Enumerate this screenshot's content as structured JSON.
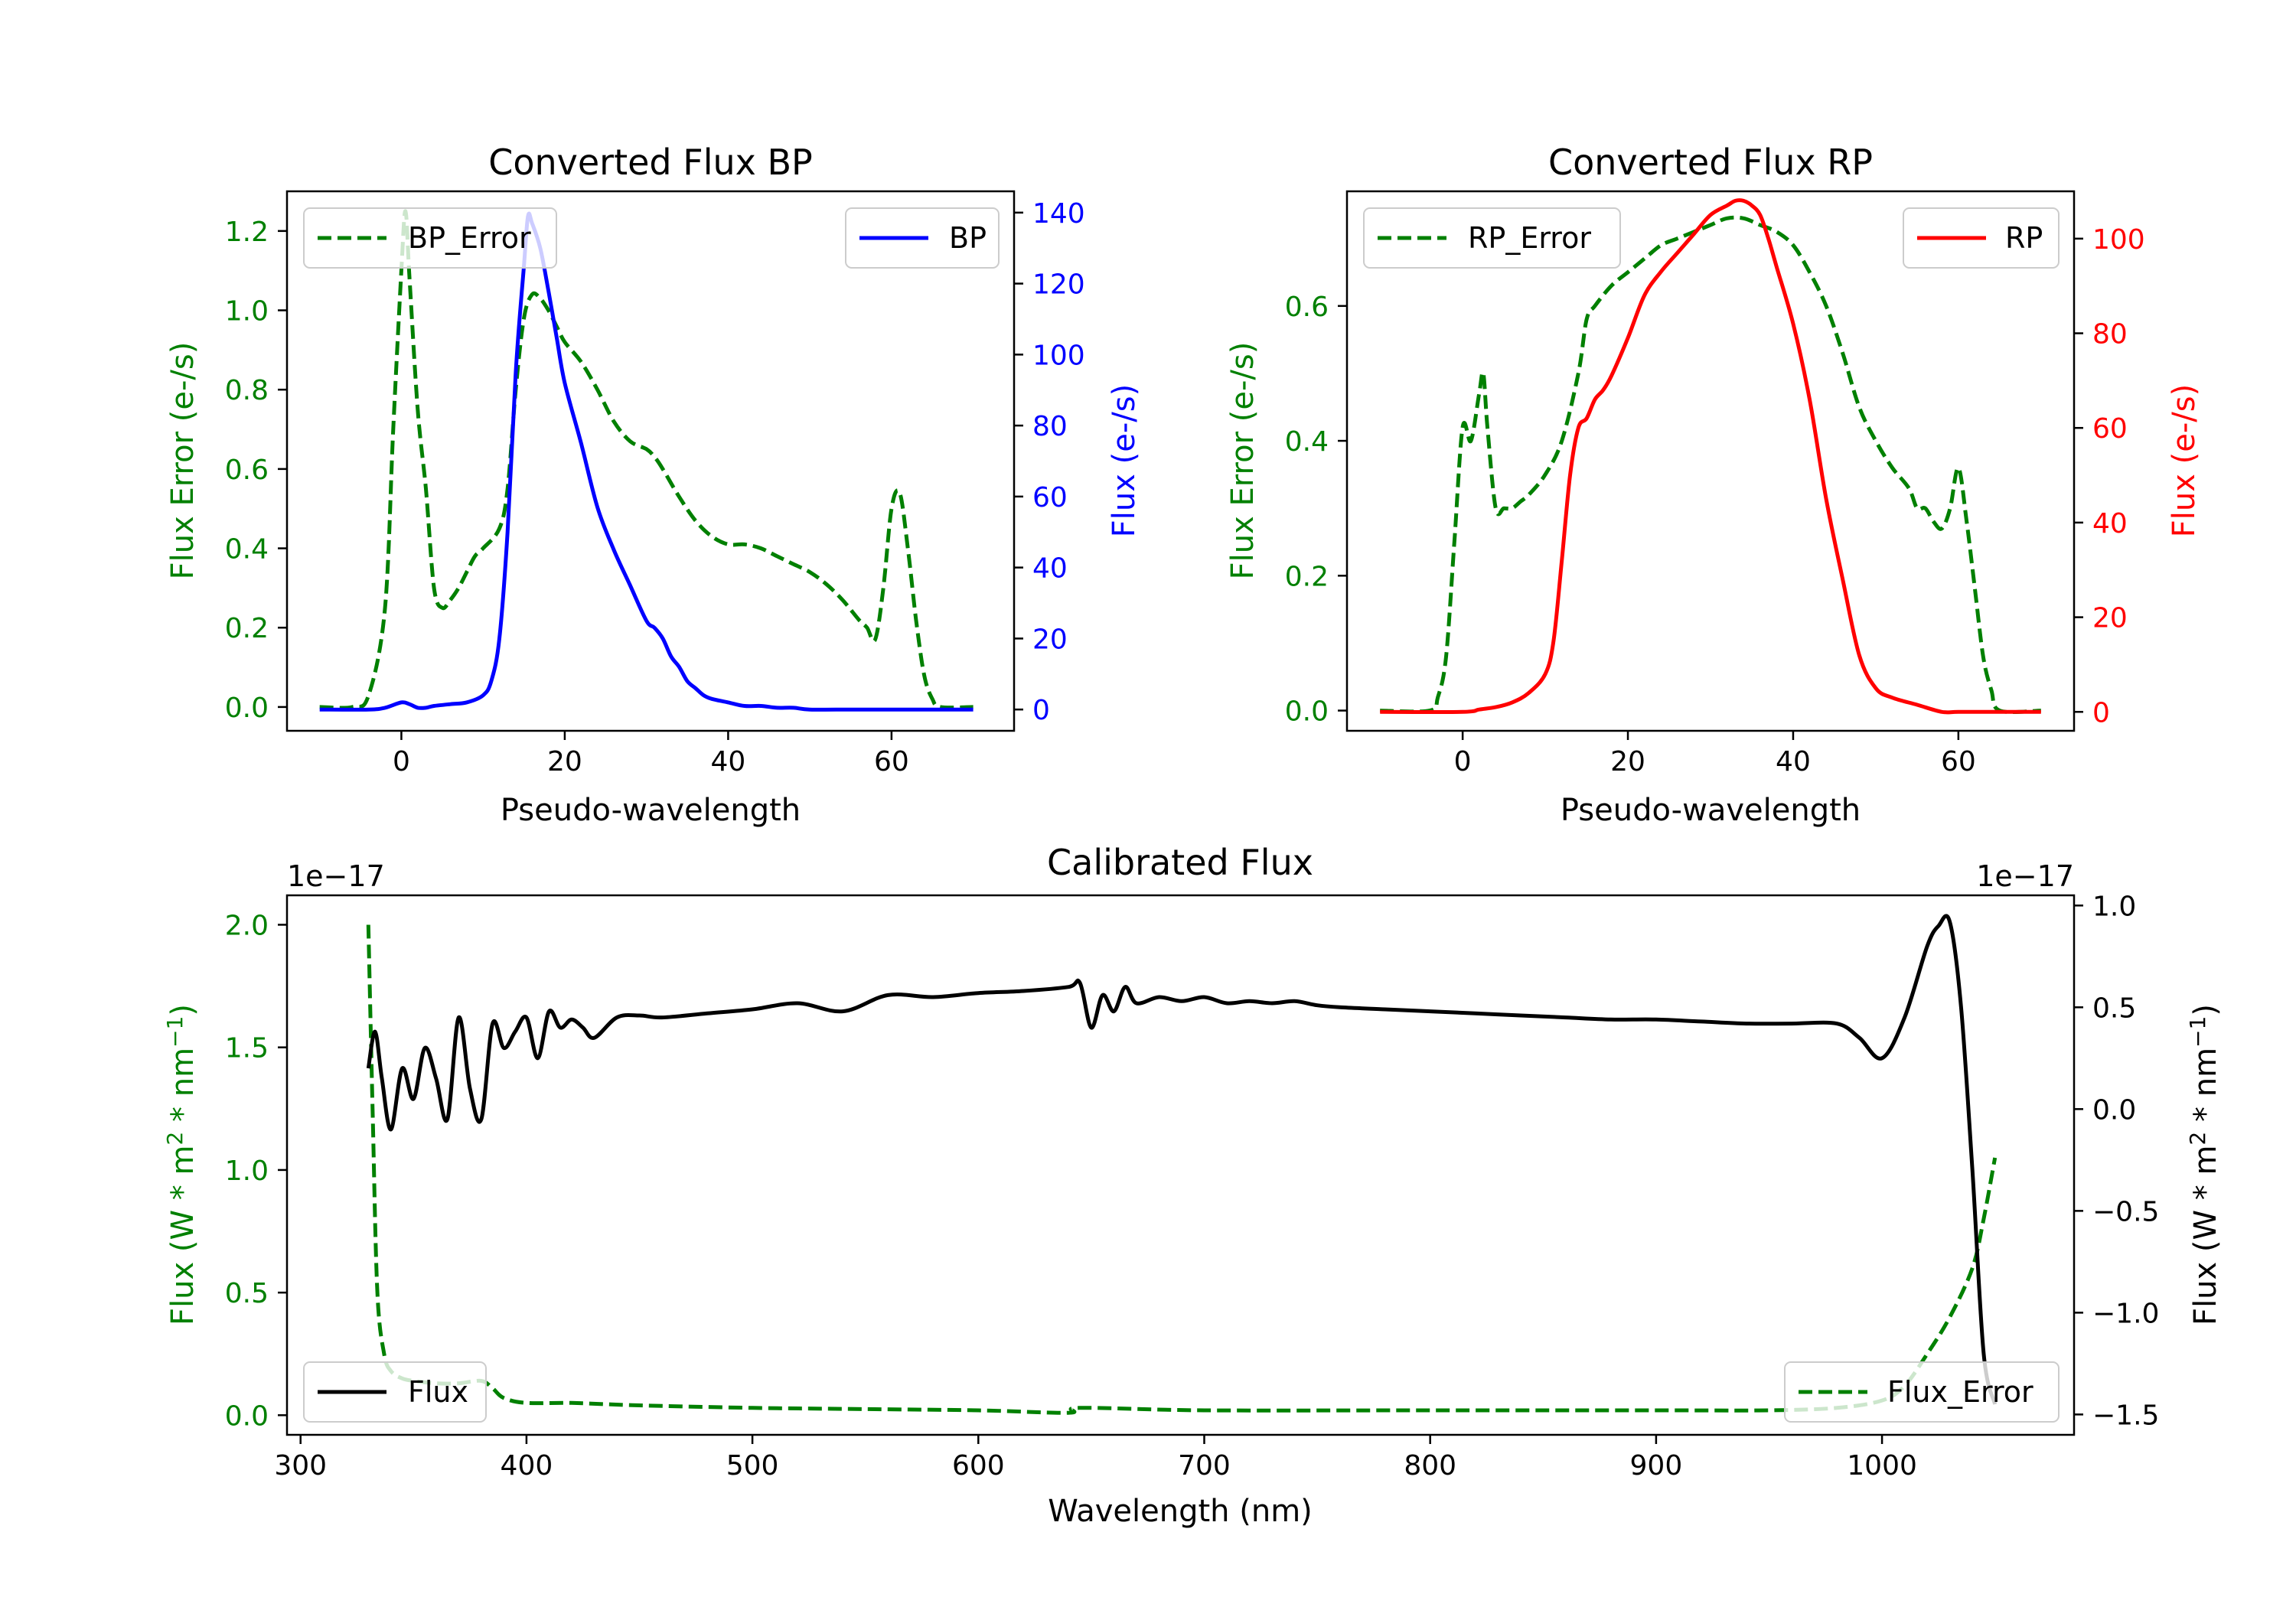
{
  "chart_data": [
    {
      "id": "bp",
      "type": "line",
      "title": "Converted Flux BP",
      "xlabel": "Pseudo-wavelength",
      "xlim": [
        -14,
        75
      ],
      "xticks": [
        0,
        20,
        40,
        60
      ],
      "y_left": {
        "label": "Flux Error (e-/s)",
        "color": "#008000",
        "lim": [
          -0.06,
          1.3
        ],
        "ticks": [
          "0.0",
          "0.2",
          "0.4",
          "0.6",
          "0.8",
          "1.0",
          "1.2"
        ],
        "tickvals": [
          0,
          0.2,
          0.4,
          0.6,
          0.8,
          1.0,
          1.2
        ]
      },
      "y_right": {
        "label": "Flux (e-/s)",
        "color": "#0000ff",
        "lim": [
          -6,
          146
        ],
        "ticks": [
          "0",
          "20",
          "40",
          "60",
          "80",
          "100",
          "120",
          "140"
        ],
        "tickvals": [
          0,
          20,
          40,
          60,
          80,
          100,
          120,
          140
        ]
      },
      "series": [
        {
          "name": "BP_Error",
          "axis": "left",
          "style": "dashed",
          "color": "#008000",
          "x": [
            -10,
            -6,
            -4,
            -2,
            -1,
            0,
            0.5,
            1,
            2,
            3,
            4,
            5,
            6,
            7,
            8,
            9,
            10,
            12,
            13,
            14,
            15,
            16,
            17,
            18,
            19,
            20,
            22,
            24,
            26,
            28,
            30,
            31,
            32,
            34,
            36,
            38,
            40,
            42,
            44,
            46,
            48,
            50,
            52,
            54,
            56,
            57,
            58,
            59,
            60,
            61,
            62,
            63,
            64,
            65,
            66,
            70
          ],
          "y": [
            0,
            0,
            0.03,
            0.25,
            0.7,
            1.1,
            1.25,
            1.08,
            0.75,
            0.55,
            0.3,
            0.25,
            0.27,
            0.3,
            0.34,
            0.38,
            0.4,
            0.45,
            0.55,
            0.8,
            0.98,
            1.04,
            1.03,
            1.0,
            0.96,
            0.92,
            0.87,
            0.8,
            0.72,
            0.67,
            0.65,
            0.63,
            0.6,
            0.53,
            0.47,
            0.43,
            0.41,
            0.41,
            0.4,
            0.38,
            0.36,
            0.34,
            0.31,
            0.27,
            0.22,
            0.2,
            0.17,
            0.3,
            0.5,
            0.54,
            0.4,
            0.22,
            0.08,
            0.02,
            0,
            0
          ]
        },
        {
          "name": "BP",
          "axis": "right",
          "style": "solid",
          "color": "#0000ff",
          "x": [
            -10,
            -4,
            -2,
            0,
            1,
            2,
            3,
            4,
            6,
            8,
            10,
            11,
            12,
            13,
            14,
            15,
            15.5,
            16,
            17,
            18,
            19,
            20,
            22,
            24,
            26,
            28,
            30,
            31,
            32,
            33,
            34,
            35,
            36,
            37,
            38,
            40,
            42,
            44,
            46,
            48,
            50,
            55,
            60,
            65,
            70
          ],
          "y": [
            0,
            0,
            0.5,
            2,
            1.5,
            0.5,
            0.5,
            1,
            1.5,
            2,
            4,
            8,
            20,
            50,
            95,
            125,
            139,
            137,
            130,
            118,
            105,
            92,
            75,
            57,
            45,
            35,
            25,
            23,
            20,
            15,
            12,
            8,
            6,
            4,
            3,
            2,
            1,
            1,
            0.5,
            0.5,
            0,
            0,
            0,
            0,
            0
          ]
        }
      ],
      "legend": [
        {
          "label": "BP_Error",
          "position": "upper-left",
          "style": "dashed",
          "color": "#008000"
        },
        {
          "label": "BP",
          "position": "upper-right",
          "style": "solid",
          "color": "#0000ff"
        }
      ]
    },
    {
      "id": "rp",
      "type": "line",
      "title": "Converted Flux RP",
      "xlabel": "Pseudo-wavelength",
      "xlim": [
        -14,
        74
      ],
      "xticks": [
        0,
        20,
        40,
        60
      ],
      "y_left": {
        "label": "Flux Error (e-/s)",
        "color": "#008000",
        "lim": [
          -0.03,
          0.77
        ],
        "ticks": [
          "0.0",
          "0.2",
          "0.4",
          "0.6"
        ],
        "tickvals": [
          0,
          0.2,
          0.4,
          0.6
        ]
      },
      "y_right": {
        "label": "Flux (e-/s)",
        "color": "#ff0000",
        "lim": [
          -4,
          110
        ],
        "ticks": [
          "0",
          "20",
          "40",
          "60",
          "80",
          "100"
        ],
        "tickvals": [
          0,
          20,
          40,
          60,
          80,
          100
        ]
      },
      "series": [
        {
          "name": "RP_Error",
          "axis": "left",
          "style": "dashed",
          "color": "#008000",
          "x": [
            -10,
            -4,
            -3,
            -2,
            -1,
            0,
            1,
            2,
            2.5,
            3,
            4,
            5,
            6,
            7,
            8,
            10,
            12,
            14,
            15,
            16,
            18,
            20,
            22,
            24,
            26,
            28,
            30,
            32,
            34,
            36,
            38,
            40,
            42,
            44,
            46,
            48,
            50,
            52,
            54,
            55,
            56,
            57,
            58,
            59,
            60,
            61,
            62,
            63,
            64,
            65,
            70
          ],
          "y": [
            0,
            0,
            0.02,
            0.08,
            0.25,
            0.42,
            0.4,
            0.47,
            0.5,
            0.42,
            0.3,
            0.3,
            0.3,
            0.31,
            0.32,
            0.35,
            0.4,
            0.5,
            0.58,
            0.6,
            0.63,
            0.65,
            0.67,
            0.69,
            0.7,
            0.71,
            0.72,
            0.73,
            0.73,
            0.72,
            0.71,
            0.69,
            0.65,
            0.6,
            0.53,
            0.45,
            0.4,
            0.36,
            0.33,
            0.3,
            0.3,
            0.28,
            0.27,
            0.3,
            0.36,
            0.28,
            0.18,
            0.08,
            0.03,
            0,
            0
          ]
        },
        {
          "name": "RP",
          "axis": "right",
          "style": "solid",
          "color": "#ff0000",
          "x": [
            -10,
            0,
            2,
            4,
            6,
            8,
            10,
            11,
            12,
            13,
            14,
            15,
            16,
            17,
            18,
            20,
            22,
            24,
            26,
            28,
            30,
            32,
            33,
            34,
            35,
            36,
            37,
            38,
            40,
            42,
            44,
            46,
            48,
            50,
            52,
            55,
            58,
            60,
            65,
            70
          ],
          "y": [
            0,
            0,
            0.5,
            1,
            2,
            4,
            8,
            15,
            32,
            50,
            60,
            62,
            66,
            68,
            71,
            79,
            88,
            93,
            97,
            101,
            105,
            107,
            108,
            108,
            107,
            105,
            100,
            94,
            82,
            66,
            45,
            28,
            12,
            5,
            3,
            1.5,
            0,
            0,
            0,
            0
          ]
        }
      ],
      "legend": [
        {
          "label": "RP_Error",
          "position": "upper-left",
          "style": "dashed",
          "color": "#008000"
        },
        {
          "label": "RP",
          "position": "upper-right",
          "style": "solid",
          "color": "#ff0000"
        }
      ]
    },
    {
      "id": "cal",
      "type": "line",
      "title": "Calibrated Flux",
      "xlabel": "Wavelength (nm)",
      "xlim": [
        294,
        1085
      ],
      "xticks": [
        300,
        400,
        500,
        600,
        700,
        800,
        900,
        1000
      ],
      "y_left": {
        "label": "Flux (W * m$^2$ * nm$^{-1}$)",
        "color": "#008000",
        "offset": "1e−17",
        "lim": [
          -0.08,
          2.12
        ],
        "ticks": [
          "0.0",
          "0.5",
          "1.0",
          "1.5",
          "2.0"
        ],
        "tickvals": [
          0,
          0.5,
          1.0,
          1.5,
          2.0
        ]
      },
      "y_right": {
        "label": "Flux (W * m$^2$ * nm$^{-1}$)",
        "color": "#000000",
        "offset": "1e−17",
        "lim": [
          -1.6,
          1.05
        ],
        "ticks": [
          "−1.5",
          "−1.0",
          "−0.5",
          "0.0",
          "0.5",
          "1.0"
        ],
        "tickvals": [
          -1.5,
          -1.0,
          -0.5,
          0,
          0.5,
          1.0
        ]
      },
      "series": [
        {
          "name": "Flux_Error",
          "axis": "left",
          "style": "dashed",
          "color": "#008000",
          "x": [
            330,
            332,
            334,
            337,
            340,
            345,
            350,
            360,
            370,
            380,
            385,
            390,
            400,
            420,
            450,
            500,
            550,
            600,
            640,
            645,
            700,
            800,
            900,
            950,
            980,
            1000,
            1010,
            1020,
            1030,
            1040,
            1045,
            1050
          ],
          "y": [
            2.0,
            1.2,
            0.5,
            0.25,
            0.18,
            0.15,
            0.14,
            0.13,
            0.13,
            0.14,
            0.11,
            0.07,
            0.05,
            0.05,
            0.04,
            0.03,
            0.025,
            0.02,
            0.01,
            0.03,
            0.02,
            0.02,
            0.02,
            0.02,
            0.03,
            0.06,
            0.12,
            0.25,
            0.4,
            0.6,
            0.8,
            1.05
          ]
        },
        {
          "name": "Flux",
          "axis": "right",
          "style": "solid",
          "color": "#000000",
          "x": [
            330,
            333,
            336,
            340,
            345,
            350,
            355,
            360,
            365,
            370,
            375,
            380,
            385,
            390,
            395,
            400,
            405,
            410,
            415,
            420,
            425,
            430,
            440,
            450,
            460,
            480,
            500,
            520,
            540,
            560,
            580,
            600,
            620,
            640,
            645,
            650,
            655,
            660,
            665,
            670,
            680,
            690,
            700,
            710,
            720,
            730,
            740,
            750,
            760,
            780,
            800,
            820,
            840,
            860,
            880,
            900,
            920,
            940,
            960,
            980,
            990,
            1000,
            1010,
            1020,
            1025,
            1030,
            1035,
            1040,
            1045,
            1050
          ],
          "y": [
            0.2,
            0.38,
            0.15,
            -0.1,
            0.2,
            0.05,
            0.3,
            0.15,
            -0.05,
            0.45,
            0.1,
            -0.05,
            0.42,
            0.3,
            0.38,
            0.45,
            0.25,
            0.48,
            0.4,
            0.44,
            0.4,
            0.35,
            0.45,
            0.46,
            0.45,
            0.47,
            0.49,
            0.52,
            0.48,
            0.56,
            0.55,
            0.57,
            0.58,
            0.6,
            0.62,
            0.4,
            0.56,
            0.48,
            0.6,
            0.52,
            0.55,
            0.53,
            0.55,
            0.52,
            0.53,
            0.52,
            0.53,
            0.51,
            0.5,
            0.49,
            0.48,
            0.47,
            0.46,
            0.45,
            0.44,
            0.44,
            0.43,
            0.42,
            0.42,
            0.42,
            0.35,
            0.25,
            0.45,
            0.8,
            0.9,
            0.92,
            0.5,
            -0.3,
            -1.2,
            -1.45
          ]
        }
      ],
      "legend": [
        {
          "label": "Flux",
          "position": "lower-left",
          "style": "solid",
          "color": "#000000"
        },
        {
          "label": "Flux_Error",
          "position": "lower-right",
          "style": "dashed",
          "color": "#008000"
        }
      ]
    }
  ]
}
